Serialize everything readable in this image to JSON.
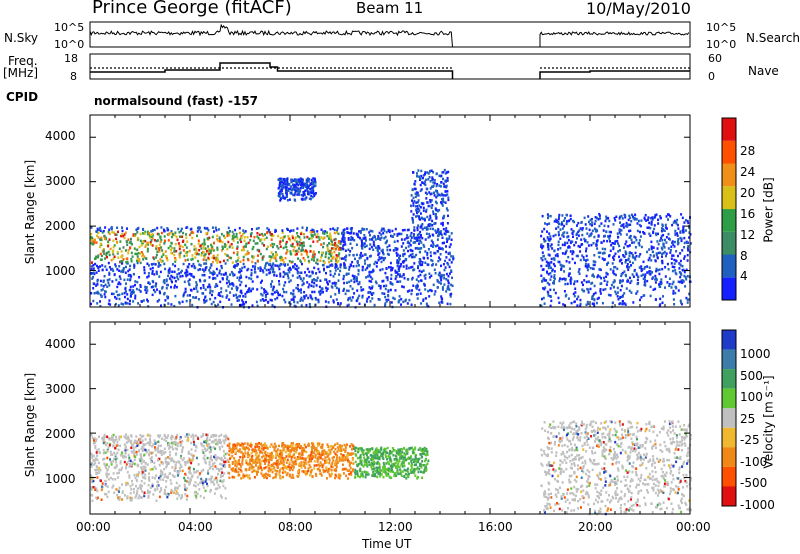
{
  "header": {
    "station": "Prince George (fitACF)",
    "beam": "Beam 11",
    "date": "10/May/2010"
  },
  "panel_labels": {
    "nsky": "N.Sky",
    "nsearch": "N.Search",
    "freq": "Freq.",
    "freq_unit": "[MHz]",
    "nave": "Nave",
    "cpid": "CPID",
    "cpid_value": "normalsound (fast) -157"
  },
  "small_axes": {
    "noise_left_ticks": [
      "10^5",
      "10^0"
    ],
    "noise_right_ticks": [
      "10^5",
      "10^0"
    ],
    "freq_left_ticks": [
      "18",
      "8"
    ],
    "nave_right_ticks": [
      "60",
      "0"
    ]
  },
  "axes": {
    "ylabel": "Slant Range [km]",
    "xlabel": "Time UT",
    "yticks": [
      "1000",
      "2000",
      "3000",
      "4000"
    ],
    "xticks": [
      "00:00",
      "04:00",
      "08:00",
      "12:00",
      "16:00",
      "20:00",
      "00:00"
    ]
  },
  "power_colorbar": {
    "label": "Power [dB]",
    "ticks": [
      "4",
      "8",
      "12",
      "16",
      "20",
      "24",
      "28"
    ],
    "colors": [
      "#1420ff",
      "#2060c0",
      "#3c8c64",
      "#2e9e46",
      "#d8c018",
      "#f09018",
      "#ff5000",
      "#e01010"
    ]
  },
  "velocity_colorbar": {
    "label": "Velocity [m s⁻¹]",
    "ticks": [
      "1000",
      "500",
      "100",
      "25",
      "-25",
      "-100",
      "-500",
      "-1000"
    ],
    "colors": [
      "#1e3cc8",
      "#3c7ca8",
      "#40a060",
      "#60c830",
      "#c0c0c0",
      "#f0b830",
      "#f08818",
      "#ff5000",
      "#e01010"
    ]
  },
  "chart_data": {
    "type": "heatmap",
    "title": "Prince George (fitACF)",
    "xlabel": "Time UT",
    "ylabel": "Slant Range [km]",
    "x_range_hours": [
      0,
      24
    ],
    "ylim_km": [
      180,
      4500
    ],
    "data_gap_hours": [
      14.5,
      18.0
    ],
    "power_echo_regions": [
      {
        "t_start": 0.0,
        "t_end": 14.5,
        "range_start_km": 200,
        "range_end_km": 2000
      },
      {
        "t_start": 7.5,
        "t_end": 9.0,
        "range_start_km": 2600,
        "range_end_km": 3100
      },
      {
        "t_start": 12.8,
        "t_end": 14.3,
        "range_start_km": 1800,
        "range_end_km": 3300
      },
      {
        "t_start": 18.0,
        "t_end": 24.0,
        "range_start_km": 200,
        "range_end_km": 2300
      }
    ],
    "velocity_echo_regions": [
      {
        "t_start": 0.0,
        "t_end": 5.5,
        "range_start_km": 500,
        "range_end_km": 2000,
        "velocity": "-25 to 25"
      },
      {
        "t_start": 5.5,
        "t_end": 10.5,
        "range_start_km": 1000,
        "range_end_km": 1800,
        "velocity": "-500 to -100"
      },
      {
        "t_start": 10.5,
        "t_end": 13.5,
        "range_start_km": 1000,
        "range_end_km": 1700,
        "velocity": "-100 to 100"
      },
      {
        "t_start": 18.0,
        "t_end": 24.0,
        "range_start_km": 200,
        "range_end_km": 2300,
        "velocity": "-25 to 25"
      }
    ]
  }
}
